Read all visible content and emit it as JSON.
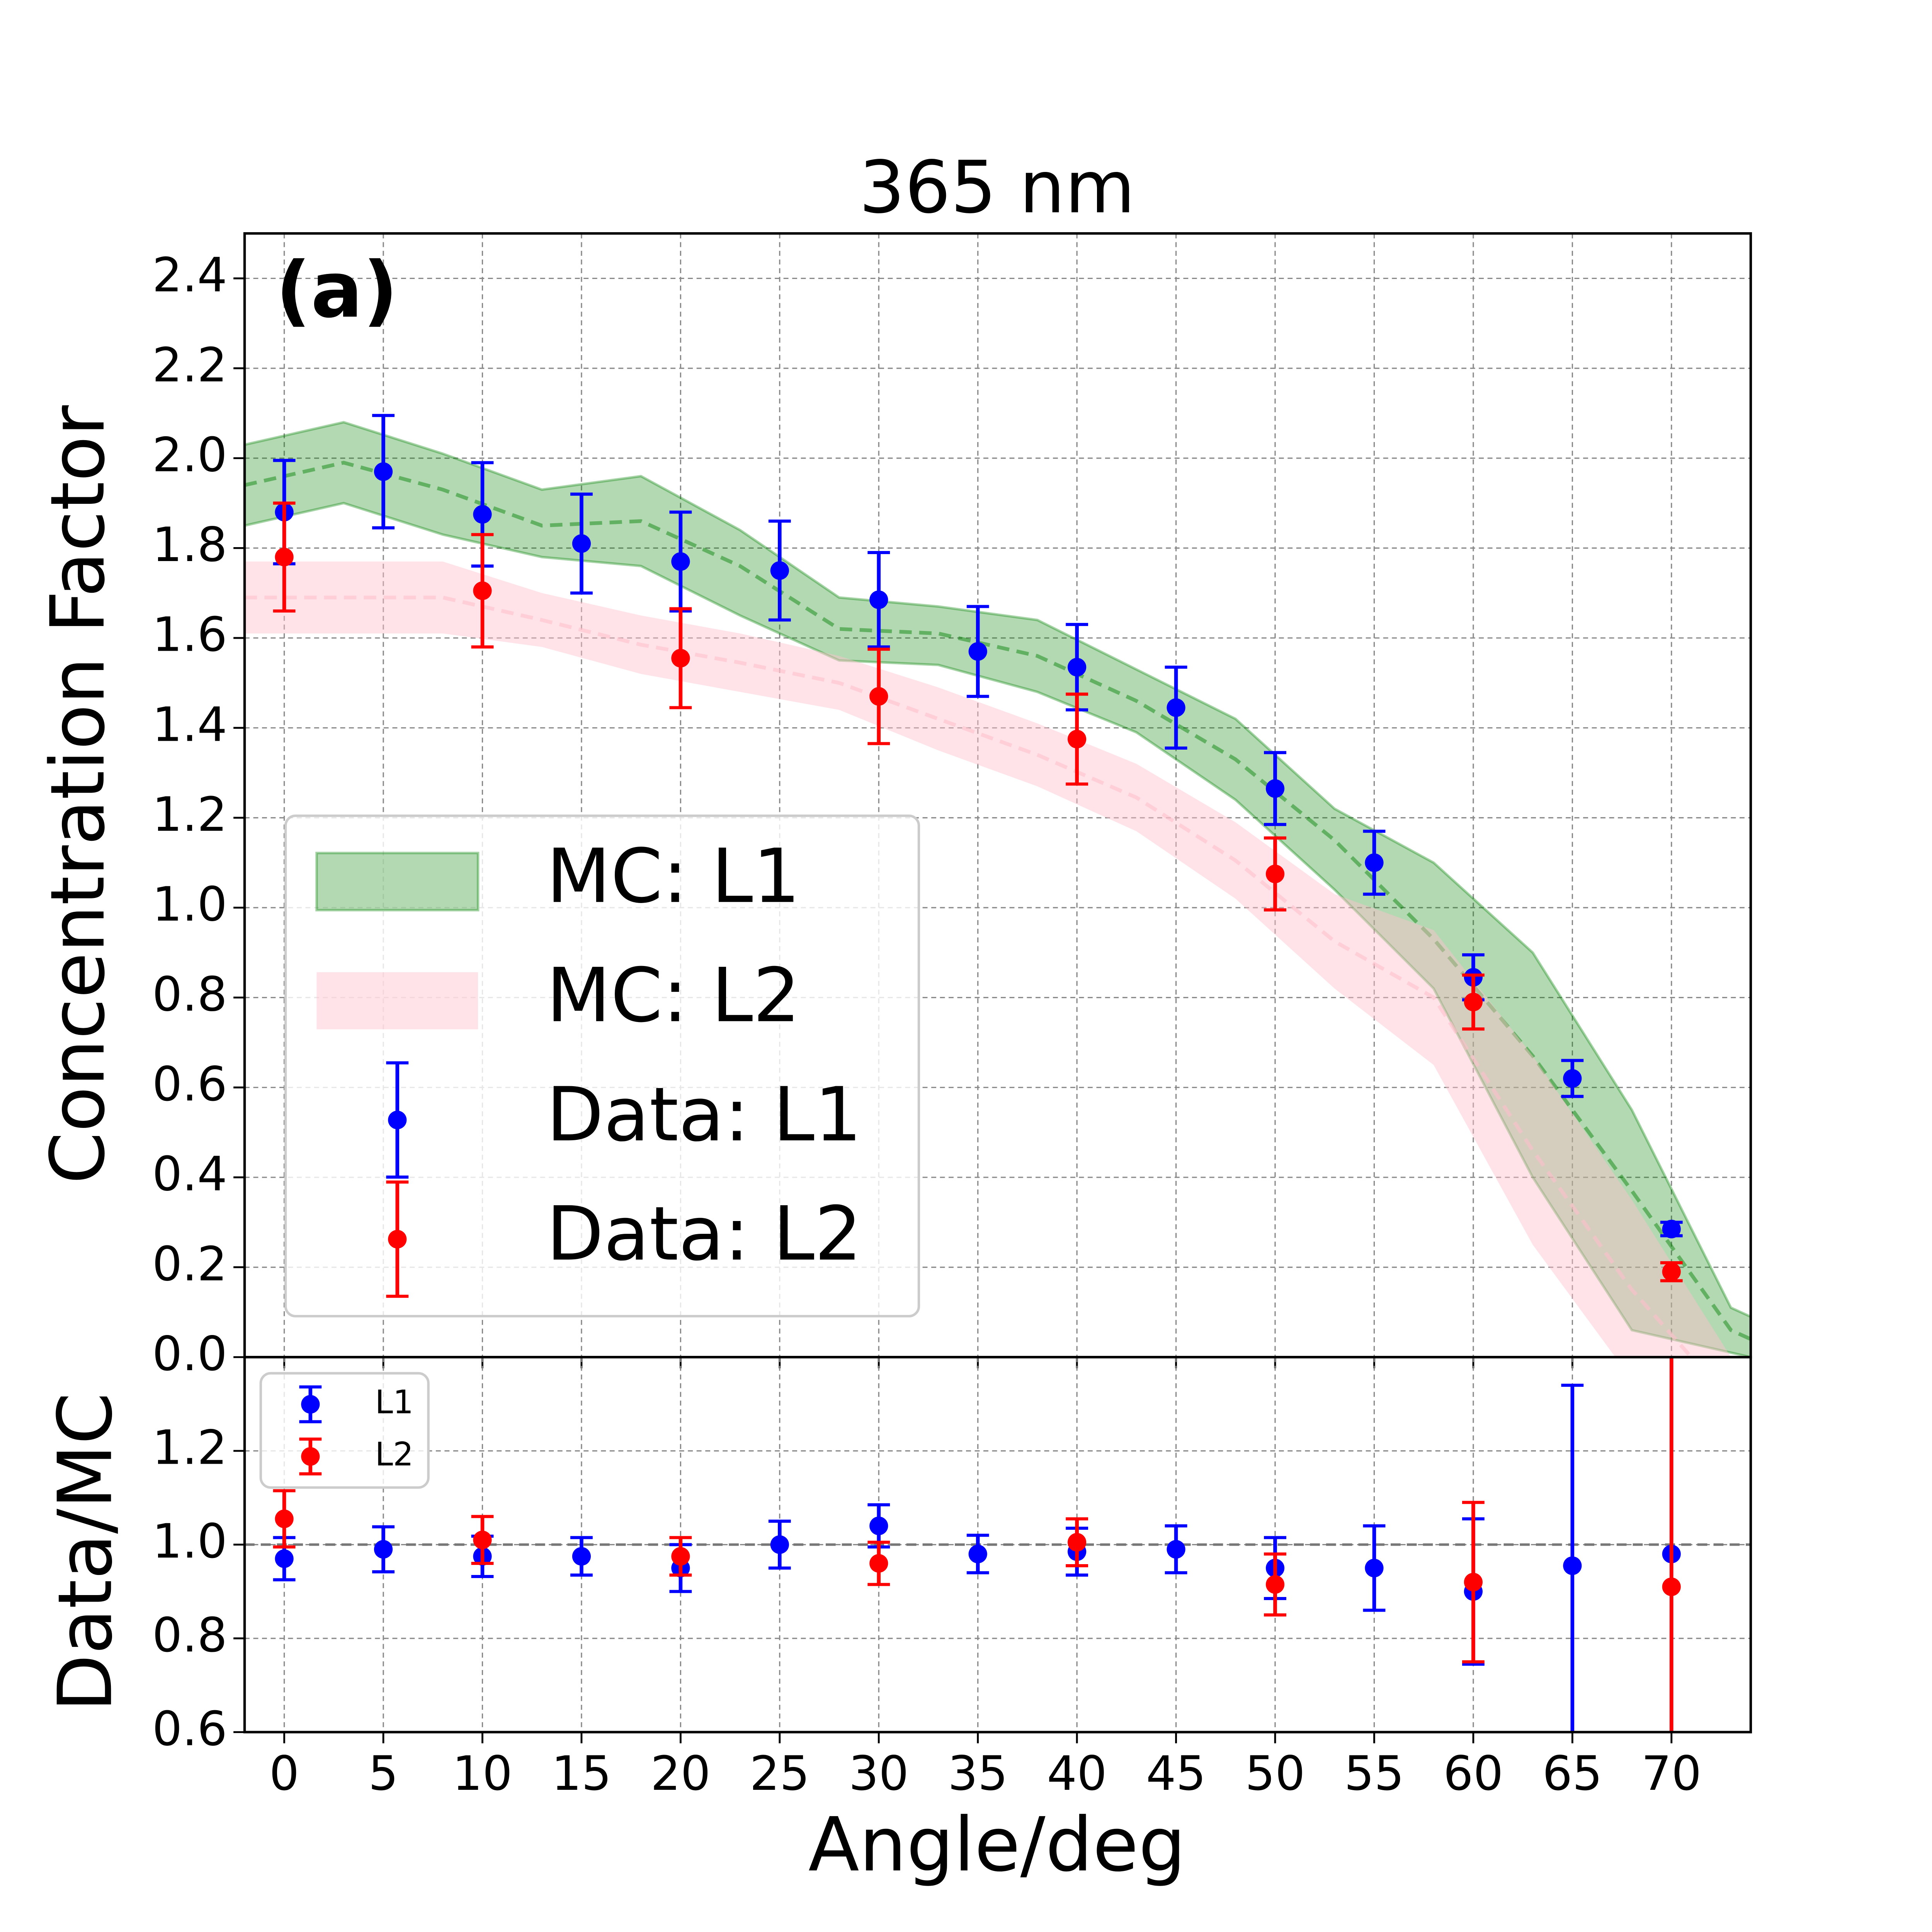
{
  "chart_data": [
    {
      "type": "errorbar-band",
      "title": "365 nm",
      "annotation": "(a)",
      "y_label": "Concentration Factor",
      "xlim": [
        -2,
        74
      ],
      "ylim": [
        0,
        2.5
      ],
      "xticks": [
        0,
        5,
        10,
        15,
        20,
        25,
        30,
        35,
        40,
        45,
        50,
        55,
        60,
        65,
        70
      ],
      "yticks": [
        {
          "value": 0,
          "label": "0.0"
        },
        {
          "value": 0.2,
          "label": "0.2"
        },
        {
          "value": 0.4,
          "label": "0.4"
        },
        {
          "value": 0.6,
          "label": "0.6"
        },
        {
          "value": 0.8,
          "label": "0.8"
        },
        {
          "value": 1.0,
          "label": "1.0"
        },
        {
          "value": 1.2,
          "label": "1.2"
        },
        {
          "value": 1.4,
          "label": "1.4"
        },
        {
          "value": 1.6,
          "label": "1.6"
        },
        {
          "value": 1.8,
          "label": "1.8"
        },
        {
          "value": 2.0,
          "label": "2.0"
        },
        {
          "value": 2.2,
          "label": "2.2"
        },
        {
          "value": 2.4,
          "label": "2.4"
        }
      ],
      "grid": true,
      "legend": "lower left",
      "bands": [
        {
          "name": "MC: L1",
          "color": "green",
          "x": [
            -2,
            3,
            8,
            13,
            18,
            23,
            28,
            33,
            38,
            43,
            48,
            53,
            58,
            63,
            68,
            73,
            74
          ],
          "values": [
            1.94,
            1.99,
            1.93,
            1.85,
            1.86,
            1.76,
            1.62,
            1.61,
            1.56,
            1.46,
            1.33,
            1.15,
            0.93,
            0.67,
            0.37,
            0.06,
            0.04
          ],
          "upper": [
            2.03,
            2.08,
            2.01,
            1.93,
            1.96,
            1.84,
            1.69,
            1.67,
            1.64,
            1.53,
            1.42,
            1.22,
            1.1,
            0.9,
            0.55,
            0.11,
            0.09
          ],
          "lower": [
            1.85,
            1.9,
            1.83,
            1.78,
            1.76,
            1.65,
            1.55,
            1.54,
            1.48,
            1.39,
            1.24,
            1.04,
            0.82,
            0.4,
            0.06,
            0.01,
            0.0
          ]
        },
        {
          "name": "MC: L2",
          "color": "pink",
          "x": [
            -2,
            3,
            8,
            13,
            18,
            23,
            28,
            33,
            38,
            43,
            48,
            53,
            58,
            63,
            68,
            73,
            74
          ],
          "values": [
            1.69,
            1.69,
            1.69,
            1.64,
            1.585,
            1.545,
            1.5,
            1.42,
            1.34,
            1.245,
            1.105,
            0.925,
            0.8,
            0.46,
            0.15,
            -0.1,
            -0.15
          ],
          "upper": [
            1.77,
            1.77,
            1.77,
            1.7,
            1.65,
            1.61,
            1.56,
            1.49,
            1.41,
            1.32,
            1.19,
            1.03,
            0.95,
            0.67,
            0.35,
            0.0,
            -0.05
          ],
          "lower": [
            1.61,
            1.61,
            1.61,
            1.58,
            1.52,
            1.48,
            1.44,
            1.35,
            1.27,
            1.17,
            1.02,
            0.82,
            0.65,
            0.25,
            -0.05,
            -0.3,
            -0.35
          ]
        }
      ],
      "x": [
        0,
        5,
        10,
        15,
        20,
        25,
        30,
        35,
        40,
        45,
        50,
        55,
        60,
        65,
        70
      ],
      "series": [
        {
          "name": "Data: L1",
          "color": "blue",
          "values": [
            1.88,
            1.97,
            1.875,
            1.81,
            1.77,
            1.75,
            1.685,
            1.57,
            1.535,
            1.445,
            1.265,
            1.1,
            0.845,
            0.62,
            0.285
          ],
          "errors": [
            0.115,
            0.125,
            0.115,
            0.11,
            0.11,
            0.11,
            0.105,
            0.1,
            0.095,
            0.09,
            0.08,
            0.07,
            0.05,
            0.04,
            0.015
          ]
        },
        {
          "name": "Data: L2",
          "color": "red",
          "values": [
            1.78,
            null,
            1.705,
            null,
            1.555,
            null,
            1.47,
            null,
            1.375,
            null,
            1.075,
            null,
            0.79,
            null,
            0.19
          ],
          "errors": [
            0.12,
            null,
            0.125,
            null,
            0.11,
            null,
            0.105,
            null,
            0.1,
            null,
            0.08,
            null,
            0.06,
            null,
            0.02
          ]
        }
      ]
    },
    {
      "type": "errorbar",
      "y_label": "Data/MC",
      "x_label": "Angle/deg",
      "xlim": [
        -2,
        74
      ],
      "ylim": [
        0.6,
        1.4
      ],
      "xticks": [
        0,
        5,
        10,
        15,
        20,
        25,
        30,
        35,
        40,
        45,
        50,
        55,
        60,
        65,
        70
      ],
      "yticks": [
        {
          "value": 0.6,
          "label": "0.6"
        },
        {
          "value": 0.8,
          "label": "0.8"
        },
        {
          "value": 1.0,
          "label": "1.0"
        },
        {
          "value": 1.2,
          "label": "1.2"
        }
      ],
      "grid": true,
      "reference_line": 1,
      "legend": "upper left",
      "x": [
        0,
        5,
        10,
        15,
        20,
        25,
        30,
        35,
        40,
        45,
        50,
        55,
        60,
        65,
        70
      ],
      "series": [
        {
          "name": "L1",
          "color": "blue",
          "values": [
            0.97,
            0.99,
            0.975,
            0.975,
            0.95,
            1.0,
            1.04,
            0.98,
            0.985,
            0.99,
            0.95,
            0.95,
            0.9,
            0.955,
            0.98
          ],
          "errors": [
            0.045,
            0.048,
            0.043,
            0.04,
            0.05,
            0.05,
            0.045,
            0.04,
            0.05,
            0.05,
            0.065,
            0.09,
            0.155,
            0.385,
            0.5
          ]
        },
        {
          "name": "L2",
          "color": "red",
          "values": [
            1.055,
            null,
            1.01,
            null,
            0.975,
            null,
            0.96,
            null,
            1.005,
            null,
            0.915,
            null,
            0.92,
            null,
            0.91
          ],
          "errors": [
            0.06,
            null,
            0.05,
            null,
            0.04,
            null,
            0.045,
            null,
            0.05,
            null,
            0.065,
            null,
            0.17,
            null,
            0.6
          ]
        }
      ]
    }
  ]
}
